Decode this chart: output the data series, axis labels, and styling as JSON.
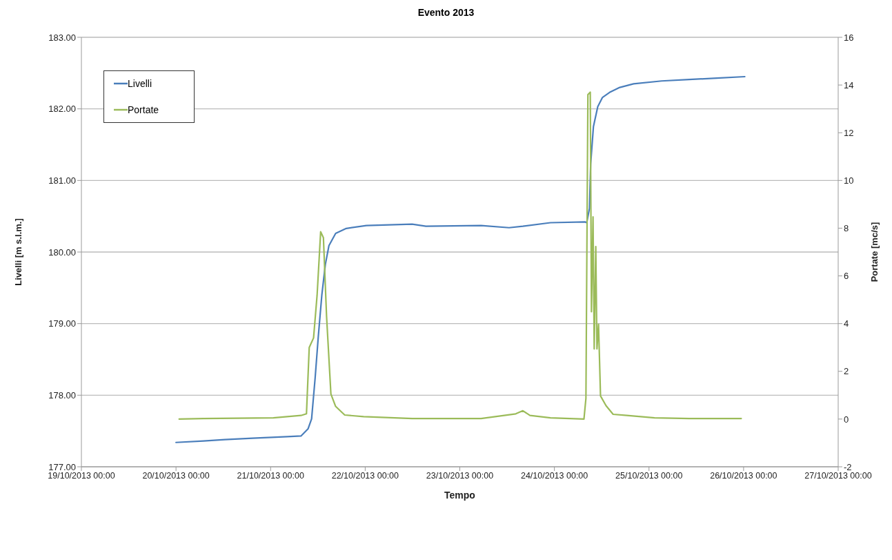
{
  "chart_data": {
    "type": "line",
    "title": "Evento 2013",
    "xlabel": "Tempo",
    "ylabel": "Livelli [m s.l.m.]",
    "y2label": "Portate [mc/s]",
    "xlim": [
      "2013-10-19T00:00",
      "2013-10-27T00:00"
    ],
    "xticks": [
      {
        "value": "2013-10-19T00:00",
        "label": "19/10/2013 00:00"
      },
      {
        "value": "2013-10-20T00:00",
        "label": "20/10/2013 00:00"
      },
      {
        "value": "2013-10-21T00:00",
        "label": "21/10/2013 00:00"
      },
      {
        "value": "2013-10-22T00:00",
        "label": "22/10/2013 00:00"
      },
      {
        "value": "2013-10-23T00:00",
        "label": "23/10/2013 00:00"
      },
      {
        "value": "2013-10-24T00:00",
        "label": "24/10/2013 00:00"
      },
      {
        "value": "2013-10-25T00:00",
        "label": "25/10/2013 00:00"
      },
      {
        "value": "2013-10-26T00:00",
        "label": "26/10/2013 00:00"
      },
      {
        "value": "2013-10-27T00:00",
        "label": "27/10/2013 00:00"
      }
    ],
    "ylim": [
      177,
      183
    ],
    "yticks": [
      {
        "value": 177,
        "label": "177.00"
      },
      {
        "value": 178,
        "label": "178.00"
      },
      {
        "value": 179,
        "label": "179.00"
      },
      {
        "value": 180,
        "label": "180.00"
      },
      {
        "value": 181,
        "label": "181.00"
      },
      {
        "value": 182,
        "label": "182.00"
      },
      {
        "value": 183,
        "label": "183.00"
      }
    ],
    "y2lim": [
      -2,
      16
    ],
    "y2ticks": [
      -2,
      0,
      2,
      4,
      6,
      8,
      10,
      12,
      14,
      16
    ],
    "grid": "y",
    "legend": "top left",
    "marker": "none",
    "line_style": "solid",
    "series": [
      {
        "name": "Livelli",
        "color": "#4a7ebb",
        "x": [
          "2013-10-20T00:00",
          "2013-10-20T07:00",
          "2013-10-20T12:24",
          "2013-10-20T19:24",
          "2013-10-21T04:12",
          "2013-10-21T07:42",
          "2013-10-21T09:30",
          "2013-10-21T10:24",
          "2013-10-21T11:18",
          "2013-10-21T12:06",
          "2013-10-21T13:00",
          "2013-10-21T13:54",
          "2013-10-21T14:48",
          "2013-10-21T16:30",
          "2013-10-21T19:12",
          "2013-10-22T00:18",
          "2013-10-22T11:54",
          "2013-10-22T15:24",
          "2013-10-23T05:24",
          "2013-10-23T12:30",
          "2013-10-23T16:00",
          "2013-10-23T23:00",
          "2013-10-24T07:48",
          "2013-10-24T08:12",
          "2013-10-24T08:54",
          "2013-10-24T09:12",
          "2013-10-24T09:54",
          "2013-10-24T11:00",
          "2013-10-24T12:12",
          "2013-10-24T14:00",
          "2013-10-24T16:36",
          "2013-10-24T20:06",
          "2013-10-25T03:12",
          "2013-10-25T10:12",
          "2013-10-25T17:12",
          "2013-10-26T00:18"
        ],
        "values": [
          177.34,
          177.36,
          177.38,
          177.4,
          177.42,
          177.43,
          177.53,
          177.67,
          178.24,
          178.82,
          179.4,
          179.83,
          180.09,
          180.26,
          180.33,
          180.37,
          180.39,
          180.36,
          180.37,
          180.34,
          180.36,
          180.41,
          180.42,
          180.41,
          180.61,
          181.23,
          181.75,
          182.03,
          182.16,
          182.23,
          182.3,
          182.35,
          182.39,
          182.41,
          182.43,
          182.45
        ]
      },
      {
        "name": "Portate",
        "color": "#9bbb59",
        "axis": "y2",
        "x": [
          "2013-10-20T00:48",
          "2013-10-20T07:00",
          "2013-10-21T00:42",
          "2013-10-21T07:42",
          "2013-10-21T09:06",
          "2013-10-21T09:48",
          "2013-10-21T10:54",
          "2013-10-21T11:48",
          "2013-10-21T12:42",
          "2013-10-21T13:24",
          "2013-10-21T14:12",
          "2013-10-21T15:18",
          "2013-10-21T16:30",
          "2013-10-21T18:48",
          "2013-10-21T23:36",
          "2013-10-22T11:54",
          "2013-10-23T05:24",
          "2013-10-23T14:12",
          "2013-10-23T16:00",
          "2013-10-23T17:48",
          "2013-10-23T23:00",
          "2013-10-24T07:30",
          "2013-10-24T08:00",
          "2013-10-24T08:30",
          "2013-10-24T09:06",
          "2013-10-24T09:24",
          "2013-10-24T09:48",
          "2013-10-24T10:06",
          "2013-10-24T10:30",
          "2013-10-24T10:48",
          "2013-10-24T11:12",
          "2013-10-24T11:42",
          "2013-10-24T13:06",
          "2013-10-24T14:54",
          "2013-10-24T18:24",
          "2013-10-25T01:24",
          "2013-10-25T10:12",
          "2013-10-25T23:24"
        ],
        "values": [
          0,
          0.02,
          0.05,
          0.15,
          0.22,
          3.0,
          3.4,
          5.2,
          7.85,
          7.6,
          4.3,
          1.05,
          0.53,
          0.17,
          0.1,
          0.02,
          0.02,
          0.22,
          0.35,
          0.15,
          0.05,
          0,
          0.87,
          13.6,
          13.7,
          4.5,
          8.47,
          2.94,
          7.23,
          2.94,
          3.97,
          0.97,
          0.56,
          0.2,
          0.15,
          0.05,
          0.02,
          0.02
        ]
      }
    ]
  }
}
